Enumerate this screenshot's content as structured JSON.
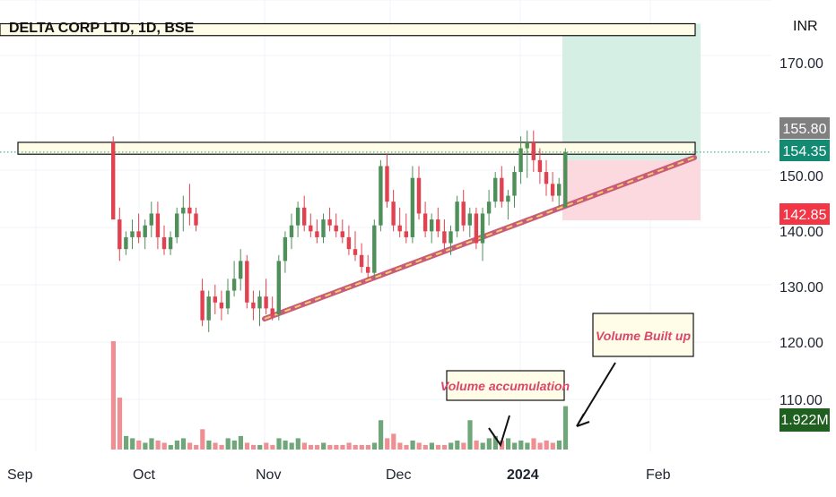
{
  "header": {
    "title": "DELTA CORP LTD, 1D, BSE",
    "currency": "INR"
  },
  "colors": {
    "up": "#4f8f5a",
    "down": "#e2424f",
    "volume_up": "#6fa67a",
    "volume_down": "#ef8f93",
    "trendline": "#c95b7b",
    "target_zone": "#d6efe5",
    "stop_zone": "#fbd9de",
    "grid": "#f0f3fa"
  },
  "price_axis": {
    "ticks": [
      "170.00",
      "150.00",
      "140.00",
      "130.00",
      "120.00",
      "110.00"
    ],
    "tick_values": [
      170,
      150,
      140,
      130,
      120,
      110
    ],
    "labels": {
      "upper": "155.80",
      "last": "154.35",
      "stop": "142.85",
      "volume": "1.922M"
    }
  },
  "time_axis": {
    "ticks": [
      "Sep",
      "Oct",
      "Nov",
      "Dec",
      "2024",
      "Feb"
    ]
  },
  "annotations": {
    "volume_accumulation": "Volume accumulation",
    "volume_built_up": "Volume Built up"
  },
  "chart_data": {
    "type": "candlestick",
    "title": "DELTA CORP LTD, 1D, BSE",
    "xlabel": "",
    "ylabel": "INR",
    "ylim": [
      103,
      180
    ],
    "x_ticks": [
      "Sep",
      "Oct",
      "Nov",
      "Dec",
      "2024",
      "Feb"
    ],
    "y_ticks": [
      170,
      150,
      140,
      130,
      120,
      110
    ],
    "series": [
      {
        "type": "candlestick",
        "ohlc": [
          [
            156,
            157,
            143,
            143
          ],
          [
            143,
            145,
            136,
            138
          ],
          [
            138,
            141,
            137,
            140
          ],
          [
            140,
            143,
            138,
            141
          ],
          [
            141,
            144,
            139,
            140
          ],
          [
            140,
            143,
            138,
            142
          ],
          [
            142,
            146,
            140,
            144
          ],
          [
            144,
            146,
            138,
            140
          ],
          [
            140,
            142,
            137,
            138
          ],
          [
            138,
            141,
            137,
            140
          ],
          [
            140,
            145,
            139,
            144
          ],
          [
            144,
            147,
            141,
            145
          ],
          [
            145,
            149,
            142,
            144
          ],
          [
            144,
            145,
            141,
            142
          ],
          [
            131,
            133,
            125,
            126
          ],
          [
            126,
            131,
            124,
            130
          ],
          [
            130,
            132,
            127,
            129
          ],
          [
            129,
            131,
            126,
            128
          ],
          [
            128,
            133,
            127,
            131
          ],
          [
            131,
            136,
            130,
            133
          ],
          [
            133,
            138,
            131,
            136
          ],
          [
            136,
            137,
            128,
            129
          ],
          [
            129,
            131,
            126,
            128
          ],
          [
            128,
            131,
            125,
            130
          ],
          [
            130,
            133,
            127,
            128
          ],
          [
            128,
            130,
            126,
            127
          ],
          [
            127,
            137,
            126,
            136
          ],
          [
            136,
            141,
            134,
            140
          ],
          [
            140,
            144,
            138,
            142
          ],
          [
            142,
            146,
            140,
            145
          ],
          [
            145,
            147,
            141,
            142
          ],
          [
            142,
            144,
            140,
            141
          ],
          [
            141,
            143,
            139,
            140
          ],
          [
            140,
            144,
            139,
            143
          ],
          [
            143,
            145,
            141,
            142
          ],
          [
            142,
            144,
            140,
            141
          ],
          [
            141,
            143,
            139,
            140
          ],
          [
            140,
            142,
            137,
            138
          ],
          [
            138,
            141,
            136,
            137
          ],
          [
            137,
            139,
            134,
            135
          ],
          [
            135,
            137,
            133,
            134
          ],
          [
            134,
            143,
            133,
            142
          ],
          [
            142,
            153,
            141,
            152
          ],
          [
            152,
            154,
            145,
            146
          ],
          [
            146,
            148,
            141,
            142
          ],
          [
            142,
            145,
            140,
            141
          ],
          [
            141,
            144,
            139,
            140
          ],
          [
            140,
            152,
            139,
            150
          ],
          [
            150,
            152,
            143,
            144
          ],
          [
            144,
            146,
            140,
            141
          ],
          [
            141,
            144,
            139,
            143
          ],
          [
            143,
            145,
            140,
            141
          ],
          [
            141,
            143,
            138,
            139
          ],
          [
            139,
            142,
            137,
            141
          ],
          [
            141,
            147,
            140,
            146
          ],
          [
            146,
            148,
            141,
            142
          ],
          [
            142,
            145,
            140,
            144
          ],
          [
            144,
            145,
            138,
            139
          ],
          [
            139,
            145,
            136,
            144
          ],
          [
            144,
            148,
            142,
            146
          ],
          [
            146,
            151,
            145,
            150
          ],
          [
            150,
            152,
            145,
            146
          ],
          [
            146,
            148,
            143,
            147
          ],
          [
            147,
            152,
            145,
            151
          ],
          [
            151,
            157,
            149,
            155
          ],
          [
            155,
            158,
            150,
            156
          ],
          [
            156,
            158,
            151,
            153
          ],
          [
            153,
            155,
            149,
            151
          ],
          [
            151,
            153,
            147,
            149
          ],
          [
            149,
            151,
            146,
            147
          ],
          [
            147,
            150,
            145,
            149
          ],
          [
            145,
            155,
            145,
            154.35
          ]
        ],
        "volume_millions": [
          4.8,
          2.3,
          0.6,
          0.5,
          0.4,
          0.3,
          0.5,
          0.4,
          0.3,
          0.2,
          0.4,
          0.5,
          0.3,
          0.2,
          0.9,
          0.4,
          0.3,
          0.2,
          0.5,
          0.4,
          0.6,
          0.3,
          0.2,
          0.2,
          0.3,
          0.2,
          0.5,
          0.4,
          0.3,
          0.5,
          0.3,
          0.2,
          0.2,
          0.3,
          0.2,
          0.2,
          0.2,
          0.3,
          0.2,
          0.2,
          0.2,
          0.3,
          1.3,
          0.5,
          0.7,
          0.3,
          0.2,
          0.4,
          0.3,
          0.2,
          0.3,
          0.2,
          0.2,
          0.3,
          0.4,
          0.3,
          1.3,
          0.4,
          0.3,
          0.5,
          0.6,
          0.4,
          0.5,
          0.3,
          0.4,
          0.3,
          0.5,
          0.3,
          0.4,
          0.3,
          0.4,
          1.922
        ]
      }
    ],
    "resistance_zones": [
      [
        174,
        176
      ],
      [
        154,
        156
      ]
    ],
    "trendline": {
      "from": [
        129,
        27
      ],
      "to": [
        153,
        77
      ]
    },
    "target_zone": {
      "from": 153,
      "to": 176
    },
    "stop_zone": {
      "from": 142.85,
      "to": 153
    },
    "last_price": 154.35
  }
}
